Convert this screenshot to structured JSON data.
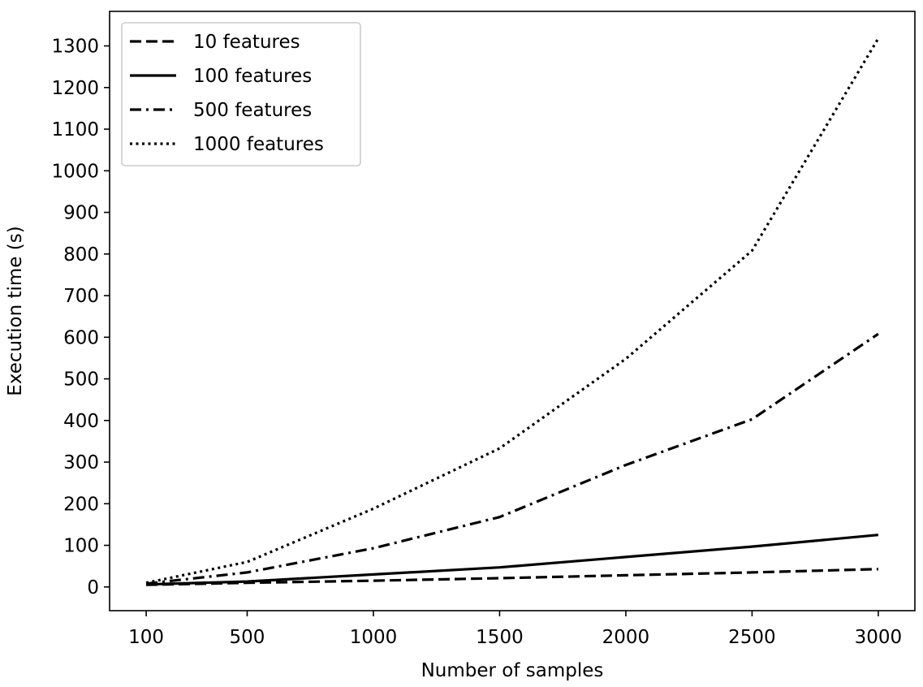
{
  "chart_data": {
    "type": "line",
    "title": "",
    "xlabel": "Number of samples",
    "ylabel": "Execution time (s)",
    "x": [
      100,
      500,
      1000,
      1500,
      2000,
      2500,
      3000
    ],
    "x_tick_labels": [
      "100",
      "500",
      "1000",
      "1500",
      "2000",
      "2500",
      "3000"
    ],
    "y_ticks": [
      0,
      100,
      200,
      300,
      400,
      500,
      600,
      700,
      800,
      900,
      1000,
      1100,
      1200,
      1300
    ],
    "xlim": [
      -45,
      3145
    ],
    "ylim": [
      -57,
      1383
    ],
    "grid": false,
    "legend_position": "top-left",
    "series": [
      {
        "name": "10 features",
        "style": "dashed",
        "color": "#000000",
        "values": [
          5,
          10,
          15,
          21,
          28,
          35,
          43
        ]
      },
      {
        "name": "100 features",
        "style": "solid",
        "color": "#000000",
        "values": [
          6,
          13,
          30,
          47,
          72,
          97,
          125
        ]
      },
      {
        "name": "500 features",
        "style": "dashdot",
        "color": "#000000",
        "values": [
          8,
          35,
          93,
          168,
          293,
          403,
          608
        ]
      },
      {
        "name": "1000 features",
        "style": "dotted",
        "color": "#000000",
        "values": [
          10,
          60,
          188,
          333,
          548,
          808,
          1318
        ]
      }
    ]
  }
}
